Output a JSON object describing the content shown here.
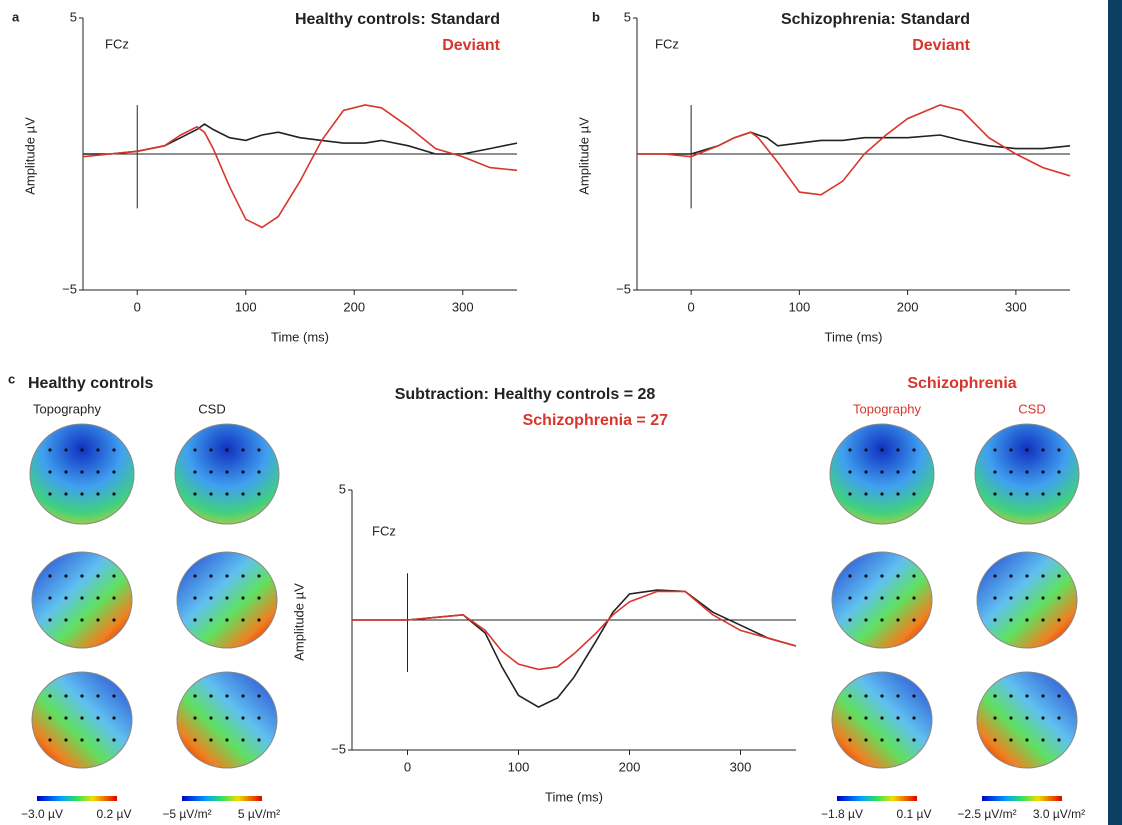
{
  "chart_data": [
    {
      "type": "line",
      "panel": "a",
      "title": "Healthy controls:",
      "channel": "FCz",
      "ylabel": "Amplitude µV",
      "xlabel": "Time (ms)",
      "xlim": [
        -50,
        350
      ],
      "xticks": [
        0,
        100,
        200,
        300
      ],
      "ylim": [
        -5,
        5
      ],
      "yticks": [
        {
          "value": -5,
          "label": "−5"
        },
        5
      ],
      "x": [
        -50,
        -25,
        0,
        25,
        40,
        55,
        62,
        70,
        85,
        100,
        115,
        130,
        150,
        170,
        190,
        210,
        225,
        250,
        275,
        300,
        325,
        350
      ],
      "series": [
        {
          "name": "Standard",
          "color": "#222222",
          "values": [
            0,
            0,
            0.1,
            0.3,
            0.6,
            0.9,
            1.1,
            0.9,
            0.6,
            0.5,
            0.7,
            0.8,
            0.6,
            0.5,
            0.4,
            0.4,
            0.5,
            0.3,
            0,
            0,
            0.2,
            0.4
          ]
        },
        {
          "name": "Deviant",
          "color": "#d9352b",
          "values": [
            -0.1,
            0,
            0.1,
            0.3,
            0.7,
            1.0,
            0.8,
            0.2,
            -1.2,
            -2.4,
            -2.7,
            -2.3,
            -1.0,
            0.5,
            1.6,
            1.8,
            1.7,
            1.0,
            0.2,
            -0.1,
            -0.5,
            -0.6
          ]
        }
      ]
    },
    {
      "type": "line",
      "panel": "b",
      "title": "Schizophrenia:",
      "channel": "FCz",
      "ylabel": "Amplitude µV",
      "xlabel": "Time (ms)",
      "xlim": [
        -50,
        350
      ],
      "xticks": [
        0,
        100,
        200,
        300
      ],
      "ylim": [
        -5,
        5
      ],
      "yticks": [
        {
          "value": -5,
          "label": "−5"
        },
        5
      ],
      "x": [
        -50,
        -25,
        0,
        25,
        40,
        55,
        62,
        70,
        80,
        100,
        120,
        140,
        160,
        180,
        200,
        230,
        250,
        275,
        300,
        325,
        350
      ],
      "series": [
        {
          "name": "Standard",
          "color": "#222222",
          "values": [
            0,
            0,
            0,
            0.3,
            0.6,
            0.8,
            0.7,
            0.6,
            0.3,
            0.4,
            0.5,
            0.5,
            0.6,
            0.6,
            0.6,
            0.7,
            0.5,
            0.3,
            0.2,
            0.2,
            0.3
          ]
        },
        {
          "name": "Deviant",
          "color": "#d9352b",
          "values": [
            0,
            0,
            -0.1,
            0.3,
            0.6,
            0.8,
            0.6,
            0.2,
            -0.3,
            -1.4,
            -1.5,
            -1.0,
            0,
            0.7,
            1.3,
            1.8,
            1.6,
            0.6,
            0,
            -0.5,
            -0.8
          ]
        }
      ]
    },
    {
      "type": "line",
      "panel": "c",
      "title": "Subtraction:",
      "channel": "FCz",
      "ylabel": "Amplitude µV",
      "xlabel": "Time (ms)",
      "xlim": [
        -50,
        350
      ],
      "xticks": [
        0,
        100,
        200,
        300
      ],
      "ylim": [
        -5,
        5
      ],
      "yticks": [
        {
          "value": -5,
          "label": "−5"
        },
        5
      ],
      "x": [
        -50,
        -25,
        0,
        25,
        50,
        70,
        85,
        100,
        118,
        135,
        150,
        170,
        185,
        200,
        225,
        250,
        275,
        300,
        325,
        350
      ],
      "series": [
        {
          "name": "Healthy controls = 28",
          "color": "#222222",
          "values": [
            0,
            0,
            0,
            0.1,
            0.2,
            -0.5,
            -1.8,
            -2.9,
            -3.35,
            -3.0,
            -2.2,
            -0.8,
            0.3,
            1.0,
            1.15,
            1.1,
            0.3,
            -0.2,
            -0.7,
            -1.0
          ]
        },
        {
          "name": "Schizophrenia = 27",
          "color": "#d9352b",
          "values": [
            0,
            0,
            0,
            0.1,
            0.2,
            -0.4,
            -1.2,
            -1.7,
            -1.9,
            -1.8,
            -1.3,
            -0.5,
            0.2,
            0.7,
            1.1,
            1.1,
            0.2,
            -0.4,
            -0.7,
            -1.0
          ]
        }
      ]
    }
  ],
  "topography": {
    "left": {
      "title": "Healthy controls",
      "columns": [
        "Topography",
        "CSD"
      ],
      "scales": [
        [
          "−3.0 µV",
          "0.2 µV"
        ],
        [
          "−5 µV/m²",
          "5 µV/m²"
        ]
      ]
    },
    "right": {
      "title": "Schizophrenia",
      "columns": [
        "Topography",
        "CSD"
      ],
      "scales": [
        [
          "−1.8 µV",
          "0.1 µV"
        ],
        [
          "−2.5 µV/m²",
          "3.0 µV/m²"
        ]
      ]
    }
  }
}
